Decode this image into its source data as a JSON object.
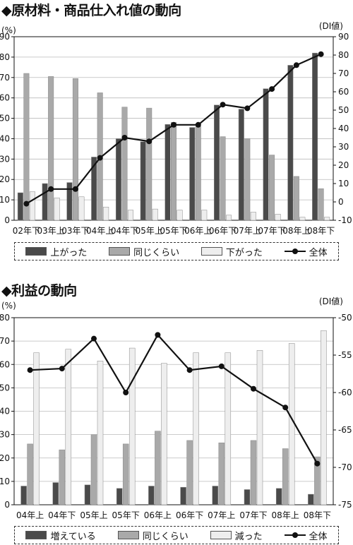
{
  "charts": [
    {
      "title": "◆原材料・商品仕入れ値の動向",
      "left_unit": "(%)",
      "right_unit": "(DI値)",
      "legend": [
        {
          "label": "上がった",
          "color": "#4a4a4a"
        },
        {
          "label": "同じくらい",
          "color": "#a9a9a9"
        },
        {
          "label": "下がった",
          "color": "#eeeeee"
        },
        {
          "label": "全体",
          "color": "#111111"
        }
      ]
    },
    {
      "title": "◆利益の動向",
      "left_unit": "(%)",
      "right_unit": "(DI値)",
      "legend": [
        {
          "label": "増えている",
          "color": "#4a4a4a"
        },
        {
          "label": "同じくらい",
          "color": "#a9a9a9"
        },
        {
          "label": "減った",
          "color": "#eeeeee"
        },
        {
          "label": "全体",
          "color": "#111111"
        }
      ]
    }
  ],
  "chart_data": [
    {
      "type": "bar",
      "title": "◆原材料・商品仕入れ値の動向",
      "categories": [
        "02年下",
        "03年上",
        "03年下",
        "04年上",
        "04年下",
        "05年上",
        "05年下",
        "06年上",
        "06年下",
        "07年上",
        "07年下",
        "08年上",
        "08年下"
      ],
      "series": [
        {
          "name": "上がった",
          "axis": "left",
          "color": "#4a4a4a",
          "values": [
            13.5,
            18,
            18.5,
            31,
            40,
            38.5,
            47,
            45.5,
            56.5,
            54.5,
            64.5,
            76,
            82
          ]
        },
        {
          "name": "同じくらい",
          "axis": "left",
          "color": "#a9a9a9",
          "values": [
            72,
            70.5,
            69.5,
            62.5,
            55.5,
            55,
            48,
            46,
            41,
            40,
            32,
            21.5,
            15.5
          ]
        },
        {
          "name": "下がった",
          "axis": "left",
          "color": "#eeeeee",
          "values": [
            14,
            11,
            11.5,
            6.5,
            5,
            5.5,
            5,
            5,
            2.5,
            4,
            3,
            1.5,
            1.5
          ]
        },
        {
          "name": "全体",
          "type": "line",
          "axis": "right",
          "color": "#111111",
          "values": [
            -1,
            7,
            7,
            24,
            35,
            33,
            42,
            42,
            53,
            51,
            61.5,
            74.5,
            80.5
          ]
        }
      ],
      "ylim_left": [
        0,
        90
      ],
      "ylim_right": [
        -10,
        90
      ],
      "ylabel_left": "(%)",
      "ylabel_right": "(DI値)",
      "yticks_left": [
        0,
        10,
        20,
        30,
        40,
        50,
        60,
        70,
        80,
        90
      ],
      "yticks_right": [
        -10,
        0,
        10,
        20,
        30,
        40,
        50,
        60,
        70,
        80,
        90
      ]
    },
    {
      "type": "bar",
      "title": "◆利益の動向",
      "categories": [
        "04年上",
        "04年下",
        "05年上",
        "05年下",
        "06年上",
        "06年下",
        "07年上",
        "07年下",
        "08年上",
        "08年下"
      ],
      "series": [
        {
          "name": "増えている",
          "axis": "left",
          "color": "#4a4a4a",
          "values": [
            8,
            9.5,
            8.5,
            7,
            8,
            7.5,
            8,
            6.5,
            7,
            4.5
          ]
        },
        {
          "name": "同じくらい",
          "axis": "left",
          "color": "#a9a9a9",
          "values": [
            26,
            23.5,
            30,
            26,
            31.5,
            27.5,
            26.5,
            27.5,
            24,
            20.5
          ]
        },
        {
          "name": "減った",
          "axis": "left",
          "color": "#eeeeee",
          "values": [
            65,
            66.5,
            61.5,
            67,
            60.5,
            65,
            65,
            66,
            69,
            74.5
          ]
        },
        {
          "name": "全体",
          "type": "line",
          "axis": "right",
          "color": "#111111",
          "values": [
            -57,
            -56.8,
            -52.8,
            -60,
            -52.3,
            -57,
            -56.5,
            -59.5,
            -62,
            -69.5
          ]
        }
      ],
      "ylim_left": [
        0,
        80
      ],
      "ylim_right": [
        -75,
        -50
      ],
      "ylabel_left": "(%)",
      "ylabel_right": "(DI値)",
      "yticks_left": [
        0,
        10,
        20,
        30,
        40,
        50,
        60,
        70,
        80
      ],
      "yticks_right": [
        -75,
        -70,
        -65,
        -60,
        -55,
        -50
      ]
    }
  ]
}
